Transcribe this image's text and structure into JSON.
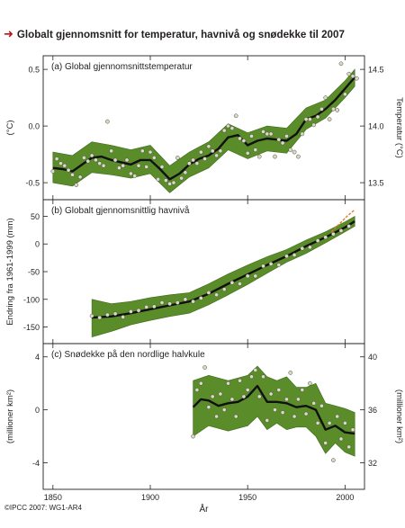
{
  "title": "Globalt gjennomsnitt for temperatur, havnivå og snødekke til 2007",
  "colors": {
    "title_arrow": "#b5121b",
    "uncertainty_band": "#5a8c2a",
    "band_edge": "#3e6b1c",
    "smooth_line": "#111111",
    "point_fill": "#d9d9c8",
    "satellite_line": "#e07b2e"
  },
  "credit": "©IPCC 2007: WG1-AR4",
  "chart_data": [
    {
      "type": "line",
      "panel_label": "(a) Global gjennomsnittstemperatur",
      "ylabel": "(°C)",
      "ylabel_right": "Temperatur (°C)",
      "ylim": [
        -0.65,
        0.62
      ],
      "y_ticks": [
        -0.5,
        0.0,
        0.5
      ],
      "y_tick_labels": [
        "-0.5",
        "0.0",
        "0.5"
      ],
      "y_right_ticks": [
        13.5,
        14.0,
        14.5
      ],
      "y_right_tick_labels": [
        "13.5",
        "14.0",
        "14.5"
      ],
      "y_right_offset": 14.0,
      "xlim": [
        1845,
        2010
      ],
      "band": {
        "x": [
          1850,
          1860,
          1870,
          1880,
          1890,
          1900,
          1910,
          1920,
          1930,
          1940,
          1950,
          1960,
          1970,
          1980,
          1990,
          2000,
          2005
        ],
        "lower": [
          -0.5,
          -0.53,
          -0.41,
          -0.43,
          -0.46,
          -0.42,
          -0.59,
          -0.45,
          -0.37,
          -0.21,
          -0.29,
          -0.22,
          -0.24,
          -0.03,
          0.07,
          0.25,
          0.35
        ],
        "upper": [
          -0.23,
          -0.26,
          -0.14,
          -0.17,
          -0.21,
          -0.17,
          -0.35,
          -0.23,
          -0.14,
          0.02,
          -0.06,
          0.0,
          -0.02,
          0.16,
          0.23,
          0.4,
          0.5
        ]
      },
      "series": [
        {
          "role": "smoothed",
          "x": [
            1850,
            1855,
            1860,
            1865,
            1870,
            1875,
            1880,
            1885,
            1890,
            1895,
            1900,
            1905,
            1910,
            1915,
            1920,
            1925,
            1930,
            1935,
            1940,
            1945,
            1950,
            1955,
            1960,
            1965,
            1970,
            1975,
            1980,
            1985,
            1990,
            1995,
            2000,
            2005
          ],
          "y": [
            -0.37,
            -0.38,
            -0.4,
            -0.34,
            -0.28,
            -0.27,
            -0.3,
            -0.32,
            -0.34,
            -0.3,
            -0.3,
            -0.38,
            -0.47,
            -0.42,
            -0.34,
            -0.29,
            -0.26,
            -0.2,
            -0.1,
            -0.08,
            -0.17,
            -0.13,
            -0.11,
            -0.12,
            -0.13,
            -0.07,
            0.06,
            0.09,
            0.15,
            0.23,
            0.33,
            0.43
          ]
        },
        {
          "role": "annual",
          "x": [
            1850,
            1852,
            1854,
            1856,
            1858,
            1860,
            1862,
            1864,
            1866,
            1868,
            1870,
            1872,
            1874,
            1876,
            1878,
            1880,
            1882,
            1884,
            1886,
            1888,
            1890,
            1892,
            1894,
            1896,
            1898,
            1900,
            1902,
            1904,
            1906,
            1908,
            1910,
            1912,
            1914,
            1916,
            1918,
            1920,
            1922,
            1924,
            1926,
            1928,
            1930,
            1932,
            1934,
            1936,
            1938,
            1940,
            1942,
            1944,
            1946,
            1948,
            1950,
            1952,
            1954,
            1956,
            1958,
            1960,
            1962,
            1964,
            1966,
            1968,
            1970,
            1972,
            1974,
            1976,
            1978,
            1980,
            1982,
            1984,
            1986,
            1988,
            1990,
            1992,
            1994,
            1996,
            1998,
            2000,
            2002,
            2004,
            2006
          ],
          "y": [
            -0.4,
            -0.29,
            -0.33,
            -0.35,
            -0.39,
            -0.43,
            -0.52,
            -0.45,
            -0.28,
            -0.31,
            -0.26,
            -0.3,
            -0.33,
            -0.35,
            0.04,
            -0.22,
            -0.3,
            -0.37,
            -0.35,
            -0.3,
            -0.42,
            -0.44,
            -0.35,
            -0.22,
            -0.36,
            -0.23,
            -0.28,
            -0.47,
            -0.36,
            -0.48,
            -0.51,
            -0.5,
            -0.28,
            -0.46,
            -0.41,
            -0.33,
            -0.3,
            -0.33,
            -0.23,
            -0.29,
            -0.18,
            -0.22,
            -0.26,
            -0.22,
            -0.04,
            0.0,
            -0.02,
            0.09,
            -0.11,
            -0.13,
            -0.24,
            -0.09,
            -0.21,
            -0.27,
            -0.05,
            -0.07,
            -0.07,
            -0.27,
            -0.12,
            -0.15,
            -0.09,
            -0.21,
            -0.23,
            -0.27,
            -0.07,
            0.06,
            0.06,
            0.01,
            0.08,
            0.15,
            0.25,
            0.06,
            0.15,
            0.14,
            0.55,
            0.28,
            0.46,
            0.44,
            0.42
          ]
        }
      ]
    },
    {
      "type": "line",
      "panel_label": "(b) Globalt gjennomsnittlig havnivå",
      "ylabel": "Endring fra 1961-1999 (mm)",
      "ylim": [
        -180,
        80
      ],
      "y_ticks": [
        -150,
        -100,
        -50,
        0,
        50
      ],
      "y_tick_labels": [
        "-150",
        "-100",
        "-50",
        "0",
        "50"
      ],
      "xlim": [
        1845,
        2010
      ],
      "band": {
        "x": [
          1870,
          1880,
          1890,
          1900,
          1910,
          1920,
          1930,
          1940,
          1950,
          1960,
          1970,
          1980,
          1990,
          2000,
          2005
        ],
        "lower": [
          -168,
          -158,
          -146,
          -138,
          -131,
          -125,
          -110,
          -92,
          -73,
          -53,
          -33,
          -17,
          2,
          22,
          32
        ],
        "upper": [
          -100,
          -108,
          -104,
          -97,
          -92,
          -88,
          -72,
          -54,
          -38,
          -23,
          -10,
          7,
          22,
          40,
          50
        ]
      },
      "series": [
        {
          "role": "smoothed",
          "x": [
            1870,
            1880,
            1890,
            1900,
            1910,
            1920,
            1930,
            1940,
            1950,
            1960,
            1970,
            1980,
            1990,
            2000,
            2005
          ],
          "y": [
            -133,
            -131,
            -125,
            -118,
            -111,
            -104,
            -90,
            -72,
            -55,
            -38,
            -22,
            -4,
            12,
            30,
            41
          ]
        },
        {
          "role": "annual",
          "x": [
            1870,
            1874,
            1878,
            1882,
            1886,
            1890,
            1894,
            1898,
            1902,
            1906,
            1910,
            1914,
            1918,
            1922,
            1926,
            1930,
            1934,
            1938,
            1942,
            1946,
            1950,
            1954,
            1958,
            1962,
            1966,
            1970,
            1974,
            1978,
            1982,
            1986,
            1990,
            1994,
            1998,
            2002
          ],
          "y": [
            -130,
            -133,
            -128,
            -126,
            -132,
            -122,
            -120,
            -114,
            -113,
            -106,
            -108,
            -106,
            -100,
            -104,
            -98,
            -88,
            -92,
            -82,
            -70,
            -72,
            -58,
            -58,
            -40,
            -36,
            -38,
            -22,
            -20,
            -8,
            -6,
            6,
            12,
            18,
            24,
            32
          ]
        },
        {
          "role": "satellite",
          "x": [
            1993,
            1997,
            2001,
            2005
          ],
          "y": [
            22,
            36,
            50,
            62
          ]
        }
      ]
    },
    {
      "type": "line",
      "panel_label": "(c) Snødekke på den nordlige halvkule",
      "ylabel": "(millioner km²)",
      "ylabel_right": "(millioner km²)",
      "ylim": [
        -6,
        5
      ],
      "y_ticks": [
        -4,
        0,
        4
      ],
      "y_tick_labels": [
        "-4",
        "0",
        "4"
      ],
      "y_right_ticks": [
        32,
        36,
        40
      ],
      "y_right_tick_labels": [
        "32",
        "36",
        "40"
      ],
      "y_right_offset": 36.0,
      "xlim": [
        1845,
        2010
      ],
      "x_ticks": [
        1850,
        1900,
        1950,
        2000
      ],
      "x_tick_labels": [
        "1850",
        "1900",
        "1950",
        "2000"
      ],
      "xlabel": "År",
      "band": {
        "x": [
          1922,
          1930,
          1940,
          1950,
          1955,
          1960,
          1965,
          1970,
          1975,
          1980,
          1985,
          1990,
          1995,
          2000,
          2005
        ],
        "lower": [
          -2.0,
          -1.2,
          -1.6,
          -1.2,
          -0.5,
          -1.5,
          -1.0,
          -1.5,
          -1.3,
          -1.3,
          -2.0,
          -3.3,
          -2.5,
          -3.2,
          -3.5
        ],
        "upper": [
          2.2,
          2.6,
          2.2,
          2.6,
          3.3,
          2.5,
          2.2,
          2.5,
          1.7,
          1.7,
          2.0,
          0.5,
          0.3,
          0.1,
          -0.2
        ]
      },
      "series": [
        {
          "role": "smoothed",
          "x": [
            1922,
            1926,
            1930,
            1935,
            1940,
            1945,
            1950,
            1955,
            1960,
            1965,
            1970,
            1975,
            1980,
            1985,
            1990,
            1995,
            2000,
            2005
          ],
          "y": [
            0.2,
            0.8,
            0.7,
            0.3,
            0.5,
            0.6,
            1.0,
            1.8,
            0.6,
            0.6,
            0.5,
            0.2,
            0.3,
            0.0,
            -1.5,
            -1.2,
            -1.7,
            -1.8
          ]
        },
        {
          "role": "annual",
          "x": [
            1922,
            1924,
            1926,
            1928,
            1930,
            1932,
            1934,
            1936,
            1938,
            1940,
            1942,
            1944,
            1946,
            1948,
            1950,
            1952,
            1954,
            1956,
            1958,
            1960,
            1962,
            1964,
            1966,
            1968,
            1970,
            1972,
            1974,
            1976,
            1978,
            1980,
            1982,
            1984,
            1986,
            1988,
            1990,
            1992,
            1994,
            1996,
            1998,
            2000,
            2002,
            2004
          ],
          "y": [
            -2.0,
            1.5,
            2.0,
            3.2,
            0.2,
            1.0,
            -0.5,
            1.2,
            0.0,
            2.0,
            0.8,
            -0.5,
            2.2,
            1.0,
            1.5,
            2.5,
            3.0,
            1.0,
            2.5,
            -0.8,
            1.2,
            0.0,
            1.5,
            -0.2,
            0.8,
            2.8,
            -0.5,
            0.8,
            1.5,
            -0.3,
            2.0,
            0.5,
            -1.0,
            0.3,
            -2.5,
            -1.0,
            -3.8,
            -0.5,
            -2.2,
            -1.0,
            -2.8,
            -1.5
          ]
        }
      ]
    }
  ]
}
